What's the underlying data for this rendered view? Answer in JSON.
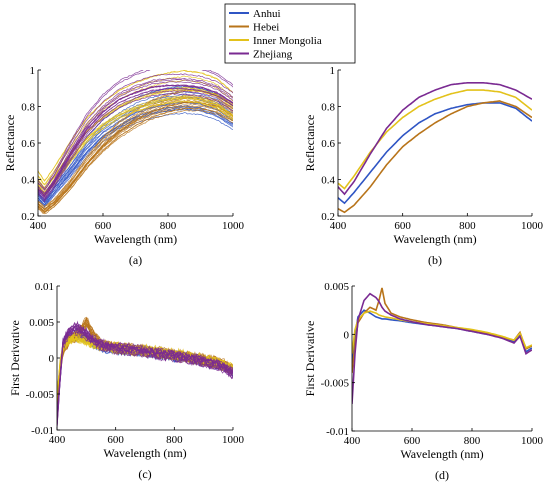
{
  "legend": {
    "entries": [
      {
        "label": "Anhui",
        "color": "#2f55c4"
      },
      {
        "label": "Hebei",
        "color": "#b8741a"
      },
      {
        "label": "Inner Mongolia",
        "color": "#e3c21b"
      },
      {
        "label": "Zhejiang",
        "color": "#7a2a92"
      }
    ]
  },
  "chart_data": [
    {
      "id": "a",
      "type": "line",
      "caption": "(a)",
      "xlabel": "Wavelength (nm)",
      "ylabel": "Reflectance",
      "xlim": [
        400,
        1000
      ],
      "ylim": [
        0.2,
        1
      ],
      "xticks": [
        400,
        600,
        800,
        1000
      ],
      "yticks": [
        0.2,
        0.4,
        0.6,
        0.8,
        1
      ],
      "ytick_labels": [
        "0.2",
        "0.4",
        "0.6",
        "0.8",
        "1"
      ],
      "note": "many overlapping individual sample spectra",
      "x": [
        400,
        420,
        450,
        500,
        550,
        600,
        650,
        700,
        750,
        800,
        850,
        900,
        950,
        1000
      ],
      "series": [
        {
          "name": "Anhui",
          "color": "#2f55c4",
          "values": [
            0.32,
            0.28,
            0.35,
            0.46,
            0.58,
            0.67,
            0.73,
            0.78,
            0.81,
            0.83,
            0.84,
            0.83,
            0.8,
            0.74
          ]
        },
        {
          "name": "Hebei",
          "color": "#b8741a",
          "values": [
            0.26,
            0.23,
            0.27,
            0.37,
            0.49,
            0.59,
            0.67,
            0.73,
            0.78,
            0.81,
            0.83,
            0.83,
            0.81,
            0.76
          ]
        },
        {
          "name": "Inner Mongolia",
          "color": "#e3c21b",
          "values": [
            0.4,
            0.35,
            0.42,
            0.55,
            0.67,
            0.75,
            0.81,
            0.85,
            0.88,
            0.9,
            0.91,
            0.9,
            0.87,
            0.8
          ]
        },
        {
          "name": "Zhejiang",
          "color": "#7a2a92",
          "values": [
            0.36,
            0.32,
            0.4,
            0.56,
            0.7,
            0.8,
            0.87,
            0.91,
            0.94,
            0.95,
            0.95,
            0.94,
            0.91,
            0.85
          ]
        }
      ]
    },
    {
      "id": "b",
      "type": "line",
      "caption": "(b)",
      "xlabel": "Wavelength (nm)",
      "ylabel": "Reflectance",
      "xlim": [
        400,
        1000
      ],
      "ylim": [
        0.2,
        1
      ],
      "xticks": [
        400,
        600,
        800,
        1000
      ],
      "yticks": [
        0.2,
        0.4,
        0.6,
        0.8,
        1
      ],
      "ytick_labels": [
        "0.2",
        "0.4",
        "0.6",
        "0.8",
        "1"
      ],
      "x": [
        400,
        420,
        450,
        500,
        550,
        600,
        650,
        700,
        750,
        800,
        850,
        900,
        950,
        1000
      ],
      "series": [
        {
          "name": "Anhui",
          "color": "#2f55c4",
          "values": [
            0.3,
            0.27,
            0.33,
            0.44,
            0.55,
            0.64,
            0.71,
            0.76,
            0.79,
            0.81,
            0.82,
            0.82,
            0.79,
            0.72
          ]
        },
        {
          "name": "Hebei",
          "color": "#b8741a",
          "values": [
            0.24,
            0.22,
            0.26,
            0.36,
            0.48,
            0.58,
            0.65,
            0.71,
            0.76,
            0.8,
            0.82,
            0.83,
            0.8,
            0.74
          ]
        },
        {
          "name": "Inner Mongolia",
          "color": "#e3c21b",
          "values": [
            0.38,
            0.35,
            0.42,
            0.55,
            0.66,
            0.74,
            0.8,
            0.84,
            0.87,
            0.89,
            0.89,
            0.88,
            0.85,
            0.78
          ]
        },
        {
          "name": "Zhejiang",
          "color": "#7a2a92",
          "values": [
            0.36,
            0.32,
            0.39,
            0.54,
            0.68,
            0.78,
            0.85,
            0.89,
            0.92,
            0.93,
            0.93,
            0.92,
            0.89,
            0.84
          ]
        }
      ]
    },
    {
      "id": "c",
      "type": "line",
      "caption": "(c)",
      "xlabel": "Wavelength (nm)",
      "ylabel": "First Derivative",
      "xlim": [
        400,
        1000
      ],
      "ylim": [
        -0.01,
        0.01
      ],
      "xticks": [
        400,
        600,
        800,
        1000
      ],
      "yticks": [
        -0.01,
        -0.005,
        0,
        0.005,
        0.01
      ],
      "ytick_labels": [
        "-0.01",
        "-0.005",
        "0",
        "0.005",
        "0.01"
      ],
      "note": "many overlapping individual sample derivative spectra",
      "x": [
        400,
        410,
        420,
        440,
        460,
        480,
        500,
        520,
        550,
        600,
        650,
        700,
        750,
        800,
        850,
        900,
        950,
        970,
        1000
      ],
      "series": [
        {
          "name": "Anhui",
          "color": "#2f55c4",
          "values": [
            -0.008,
            -0.003,
            0.002,
            0.003,
            0.0032,
            0.003,
            0.0028,
            0.0022,
            0.0016,
            0.0013,
            0.0011,
            0.0009,
            0.0006,
            0.0003,
            0.0001,
            -0.0004,
            -0.0008,
            -0.0012,
            -0.0018
          ]
        },
        {
          "name": "Hebei",
          "color": "#b8741a",
          "values": [
            -0.006,
            -0.002,
            0.001,
            0.0025,
            0.003,
            0.0038,
            0.005,
            0.0034,
            0.0018,
            0.0014,
            0.0012,
            0.001,
            0.0007,
            0.0004,
            0.0001,
            -0.0003,
            -0.0007,
            -0.001,
            -0.0016
          ]
        },
        {
          "name": "Inner Mongolia",
          "color": "#e3c21b",
          "values": [
            -0.005,
            -0.001,
            0.0015,
            0.0025,
            0.0028,
            0.0027,
            0.0024,
            0.002,
            0.0017,
            0.0014,
            0.0012,
            0.001,
            0.0008,
            0.0005,
            0.0002,
            -0.0002,
            -0.0006,
            -0.0009,
            -0.0015
          ]
        },
        {
          "name": "Zhejiang",
          "color": "#7a2a92",
          "values": [
            -0.009,
            -0.003,
            0.002,
            0.0035,
            0.0042,
            0.0038,
            0.0032,
            0.0025,
            0.0018,
            0.0014,
            0.0012,
            0.0009,
            0.0006,
            0.0003,
            0.0,
            -0.0004,
            -0.0009,
            -0.0013,
            -0.002
          ]
        }
      ]
    },
    {
      "id": "d",
      "type": "line",
      "caption": "(d)",
      "xlabel": "Wavelength (nm)",
      "ylabel": "First Derivative",
      "xlim": [
        400,
        1000
      ],
      "ylim": [
        -0.01,
        0.005
      ],
      "xticks": [
        400,
        600,
        800,
        1000
      ],
      "yticks": [
        -0.01,
        -0.005,
        0,
        0.005
      ],
      "ytick_labels": [
        "-0.01",
        "-0.005",
        "0",
        "0.005"
      ],
      "x": [
        400,
        410,
        420,
        440,
        460,
        480,
        490,
        500,
        510,
        530,
        560,
        600,
        650,
        700,
        750,
        800,
        850,
        900,
        940,
        960,
        980,
        1000
      ],
      "series": [
        {
          "name": "Anhui",
          "color": "#2f55c4",
          "values": [
            -0.003,
            0.0,
            0.0018,
            0.0025,
            0.0022,
            0.0018,
            0.0017,
            0.0016,
            0.0016,
            0.0015,
            0.0014,
            0.0012,
            0.001,
            0.0008,
            0.0006,
            0.0003,
            0.0,
            -0.0003,
            -0.0008,
            0.0,
            -0.0018,
            -0.0014
          ]
        },
        {
          "name": "Hebei",
          "color": "#b8741a",
          "values": [
            -0.004,
            -0.001,
            0.0012,
            0.0022,
            0.0028,
            0.0025,
            0.0035,
            0.0048,
            0.0032,
            0.0022,
            0.0018,
            0.0015,
            0.0012,
            0.001,
            0.0007,
            0.0004,
            0.0001,
            -0.0003,
            -0.0006,
            0.0002,
            -0.0015,
            -0.0012
          ]
        },
        {
          "name": "Inner Mongolia",
          "color": "#e3c21b",
          "values": [
            -0.002,
            0.0005,
            0.0015,
            0.0022,
            0.0024,
            0.0022,
            0.002,
            0.0019,
            0.0018,
            0.0017,
            0.0015,
            0.0013,
            0.0011,
            0.0009,
            0.0007,
            0.0005,
            0.0002,
            -0.0002,
            -0.0006,
            0.0001,
            -0.0014,
            -0.0011
          ]
        },
        {
          "name": "Zhejiang",
          "color": "#7a2a92",
          "values": [
            -0.0072,
            -0.002,
            0.0015,
            0.0035,
            0.0042,
            0.0038,
            0.0034,
            0.0028,
            0.0024,
            0.002,
            0.0016,
            0.0013,
            0.001,
            0.0008,
            0.0006,
            0.0003,
            0.0,
            -0.0004,
            -0.0009,
            -0.0002,
            -0.002,
            -0.0016
          ]
        }
      ]
    }
  ]
}
